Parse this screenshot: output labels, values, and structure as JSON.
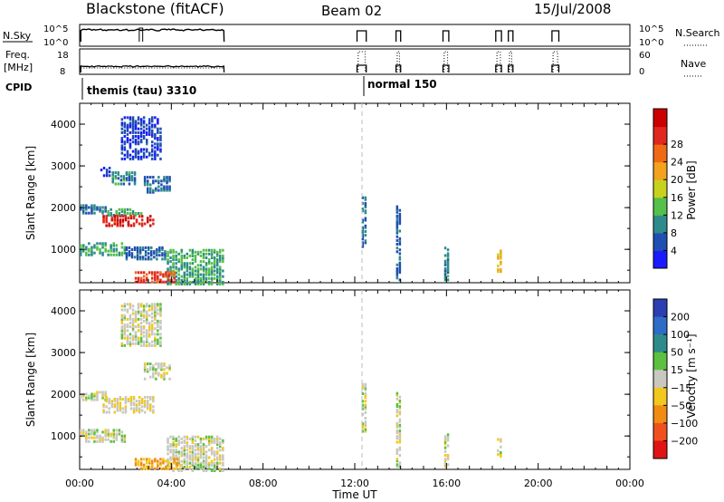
{
  "header": {
    "title": "Blackstone (fitACF)",
    "beam": "Beam 02",
    "date": "15/Jul/2008"
  },
  "top_panels": {
    "nsky_label": "N.Sky",
    "nsky_ticks": [
      "10^5",
      "10^0"
    ],
    "nsearch_label": "N.Search",
    "nsearch_ticks": [
      "10^5",
      "10^0"
    ],
    "freq_label_line1": "Freq.",
    "freq_label_line2": "[MHz]",
    "freq_ticks": [
      "18",
      "8"
    ],
    "nave_label": "Nave",
    "nave_ticks": [
      "60",
      "0"
    ],
    "cpid_label": "CPID",
    "cpid_1": "themis (tau) 3310",
    "cpid_2": "normal 150"
  },
  "axes": {
    "ylabel": "Slant Range [km]",
    "xlabel": "Time UT",
    "y_ticks": [
      "1000",
      "2000",
      "3000",
      "4000"
    ],
    "x_ticks": [
      "00:00",
      "04:00",
      "08:00",
      "12:00",
      "16:00",
      "20:00",
      "00:00"
    ]
  },
  "power_colorbar": {
    "label": "Power [dB]",
    "ticks": [
      "4",
      "8",
      "12",
      "16",
      "20",
      "24",
      "28"
    ],
    "colors": [
      "#1a1aff",
      "#1f4fb0",
      "#2e8b8b",
      "#55c04a",
      "#c8d21e",
      "#f2a21e",
      "#f06a14",
      "#e0281e",
      "#cc0000"
    ]
  },
  "velocity_colorbar": {
    "label": "Velocity [m s⁻¹]",
    "ticks": [
      "200",
      "100",
      "50",
      "15",
      "−15",
      "−50",
      "−100",
      "−200"
    ],
    "colors": [
      "#2b3fb0",
      "#2e6cc8",
      "#2e8b8b",
      "#5cc040",
      "#c8c8c0",
      "#f2c81e",
      "#f08c14",
      "#f0501e",
      "#e01414"
    ]
  },
  "chart_data": [
    {
      "type": "heatmap",
      "title": "",
      "xlabel": "",
      "ylabel": "Slant Range [km]",
      "xlim": [
        0,
        24
      ],
      "ylim": [
        200,
        4500
      ],
      "colorbar_label": "Power [dB]",
      "colorbar_range": [
        0,
        30
      ],
      "regions": [
        {
          "t": [
            1.8,
            3.6
          ],
          "r": [
            3200,
            4200
          ],
          "v": 4
        },
        {
          "t": [
            0.9,
            1.3
          ],
          "r": [
            2800,
            3000
          ],
          "v": 4
        },
        {
          "t": [
            1.4,
            2.4
          ],
          "r": [
            2600,
            2900
          ],
          "v": 8
        },
        {
          "t": [
            2.8,
            4.0
          ],
          "r": [
            2400,
            2800
          ],
          "v": 6
        },
        {
          "t": [
            0.0,
            1.2
          ],
          "r": [
            1900,
            2100
          ],
          "v": 6
        },
        {
          "t": [
            1.2,
            2.8
          ],
          "r": [
            1850,
            2000
          ],
          "v": 10
        },
        {
          "t": [
            1.0,
            3.2
          ],
          "r": [
            1600,
            1850
          ],
          "v": 26
        },
        {
          "t": [
            0.0,
            2.0
          ],
          "r": [
            900,
            1200
          ],
          "v": 10
        },
        {
          "t": [
            2.0,
            3.8
          ],
          "r": [
            800,
            1100
          ],
          "v": 6
        },
        {
          "t": [
            3.8,
            6.3
          ],
          "r": [
            200,
            1050
          ],
          "v": 10
        },
        {
          "t": [
            2.4,
            4.2
          ],
          "r": [
            250,
            500
          ],
          "v": 24
        },
        {
          "t": [
            12.3,
            12.5
          ],
          "r": [
            1100,
            2300
          ],
          "v": 6
        },
        {
          "t": [
            13.8,
            14.0
          ],
          "r": [
            300,
            2100
          ],
          "v": 6
        },
        {
          "t": [
            15.9,
            16.1
          ],
          "r": [
            300,
            1100
          ],
          "v": 8
        },
        {
          "t": [
            18.2,
            18.4
          ],
          "r": [
            500,
            1000
          ],
          "v": 16
        }
      ]
    },
    {
      "type": "heatmap",
      "title": "",
      "xlabel": "Time UT",
      "ylabel": "Slant Range [km]",
      "xlim": [
        0,
        24
      ],
      "ylim": [
        200,
        4500
      ],
      "colorbar_label": "Velocity [m s⁻¹]",
      "colorbar_range": [
        -250,
        250
      ],
      "regions": [
        {
          "t": [
            1.8,
            3.6
          ],
          "r": [
            3200,
            4200
          ],
          "v": 0
        },
        {
          "t": [
            0.0,
            1.2
          ],
          "r": [
            1900,
            2100
          ],
          "v": 0
        },
        {
          "t": [
            1.0,
            3.2
          ],
          "r": [
            1600,
            2000
          ],
          "v": -20
        },
        {
          "t": [
            2.8,
            4.0
          ],
          "r": [
            2400,
            2800
          ],
          "v": 0
        },
        {
          "t": [
            0.0,
            2.0
          ],
          "r": [
            900,
            1200
          ],
          "v": 0
        },
        {
          "t": [
            3.8,
            6.3
          ],
          "r": [
            200,
            1050
          ],
          "v": 0
        },
        {
          "t": [
            2.4,
            4.4
          ],
          "r": [
            250,
            500
          ],
          "v": -80
        },
        {
          "t": [
            5.0,
            6.0
          ],
          "r": [
            250,
            400
          ],
          "v": 40
        },
        {
          "t": [
            12.3,
            12.5
          ],
          "r": [
            1100,
            2300
          ],
          "v": 0
        },
        {
          "t": [
            13.8,
            14.0
          ],
          "r": [
            300,
            2100
          ],
          "v": 0
        },
        {
          "t": [
            15.9,
            16.1
          ],
          "r": [
            300,
            1100
          ],
          "v": 0
        },
        {
          "t": [
            18.2,
            18.4
          ],
          "r": [
            500,
            1000
          ],
          "v": 0
        }
      ]
    }
  ]
}
